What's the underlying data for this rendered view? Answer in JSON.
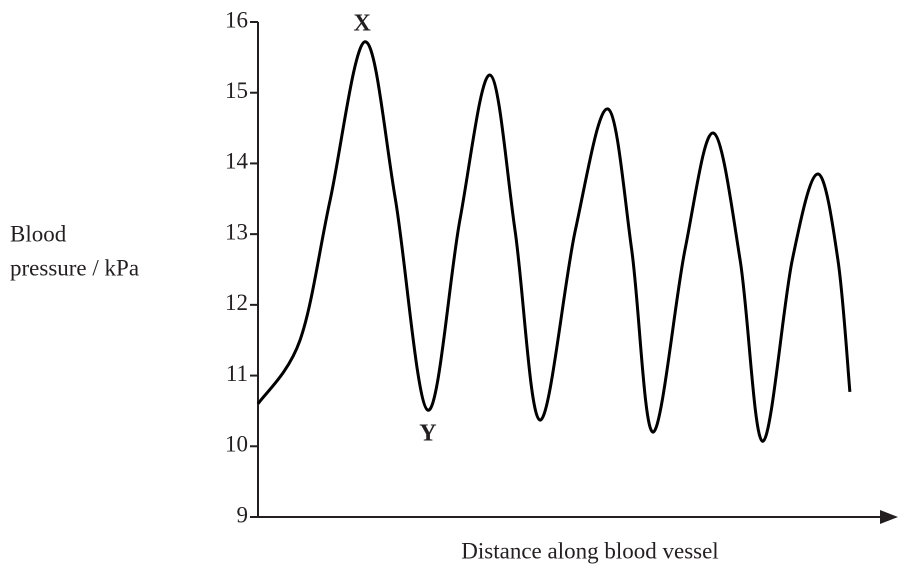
{
  "chart_data": {
    "type": "line",
    "x_label": "Distance along blood vessel",
    "y_label": [
      "Blood",
      "pressure / kPa"
    ],
    "annotations": [
      "X",
      "Y"
    ],
    "x": [
      0,
      6.7,
      11.5,
      17.1,
      21.9,
      27.1,
      32.2,
      37.0,
      41.0,
      45.0,
      50.6,
      55.8,
      59.6,
      63.0,
      68.1,
      72.6,
      76.9,
      80.5,
      85.2,
      89.3,
      92.5,
      94.4
    ],
    "xlim": [
      0,
      100
    ],
    "series": [
      {
        "color": "#000000",
        "values": [
          10.6,
          11.5,
          13.48,
          15.72,
          13.5,
          10.51,
          13.2,
          15.25,
          13.05,
          10.37,
          13.05,
          14.77,
          12.78,
          10.2,
          12.78,
          14.43,
          12.63,
          10.07,
          12.63,
          13.85,
          12.63,
          10.77
        ]
      }
    ],
    "ylim": [
      9,
      16
    ],
    "yticks": [
      9,
      10,
      11,
      12,
      13,
      14,
      15,
      16
    ]
  }
}
